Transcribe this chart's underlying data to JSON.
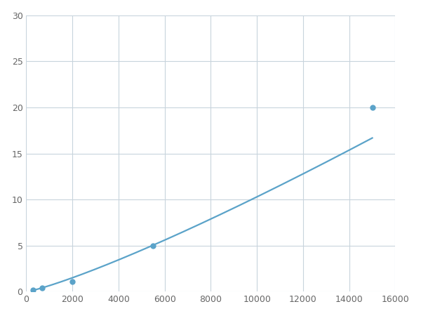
{
  "x_points": [
    300,
    700,
    2000,
    5500,
    15000
  ],
  "y_points": [
    0.2,
    0.4,
    1.1,
    5.0,
    20.0
  ],
  "line_color": "#5ba3c9",
  "marker_color": "#5ba3c9",
  "marker_size": 5,
  "line_width": 1.6,
  "xlim": [
    0,
    16000
  ],
  "ylim": [
    0,
    30
  ],
  "xticks": [
    0,
    2000,
    4000,
    6000,
    8000,
    10000,
    12000,
    14000,
    16000
  ],
  "yticks": [
    0,
    5,
    10,
    15,
    20,
    25,
    30
  ],
  "grid_color": "#c8d4dc",
  "background_color": "#ffffff",
  "figsize": [
    6.0,
    4.5
  ],
  "dpi": 100
}
